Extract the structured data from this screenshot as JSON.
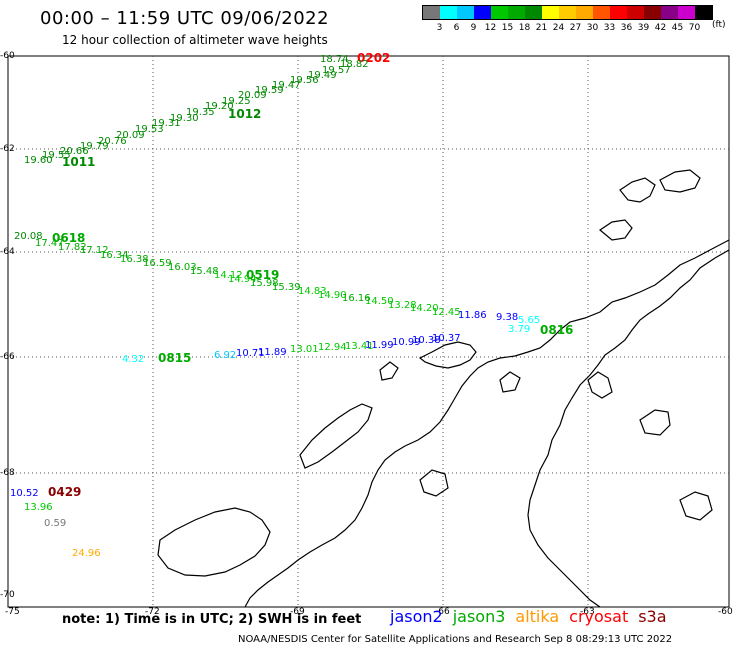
{
  "header": {
    "title": "00:00 – 11:59 UTC 09/06/2022",
    "subtitle": "12 hour collection of altimeter wave heights"
  },
  "legend": {
    "colors": [
      "#777777",
      "#00ffff",
      "#00c8ff",
      "#0000ff",
      "#00c800",
      "#00aa00",
      "#008800",
      "#ffff00",
      "#ffcc00",
      "#ffaa00",
      "#ff5500",
      "#ff0000",
      "#cc0000",
      "#880000",
      "#880088",
      "#cc00cc",
      "#000000"
    ],
    "labels": [
      "3",
      "6",
      "9",
      "12",
      "15",
      "18",
      "21",
      "24",
      "27",
      "30",
      "33",
      "36",
      "39",
      "42",
      "45",
      "70"
    ],
    "unit": "(ft)"
  },
  "axes": {
    "lat_labels": [
      "-60",
      "-62",
      "-64",
      "-66",
      "-68",
      "-70"
    ],
    "lon_labels": [
      "-75",
      "-72",
      "-69",
      "-66",
      "-63",
      "-60"
    ]
  },
  "passes": [
    {
      "id": "0202",
      "color": "#ff0000"
    },
    {
      "id": "1012",
      "color": "#008800"
    },
    {
      "id": "1011",
      "color": "#008800"
    },
    {
      "id": "0618",
      "color": "#00aa00"
    },
    {
      "id": "0519",
      "color": "#00aa00"
    },
    {
      "id": "0816",
      "color": "#00aa00"
    },
    {
      "id": "0815",
      "color": "#00aa00"
    },
    {
      "id": "0429",
      "color": "#880000"
    }
  ],
  "observations": {
    "track_0202": [
      "18.74",
      "18.82",
      "19.57",
      "19.49",
      "19.56",
      "19.47",
      "19.59",
      "20.09",
      "19.25",
      "19.20",
      "19.35",
      "19.30",
      "19.31",
      "19.53",
      "20.09",
      "20.76",
      "19.79",
      "20.66",
      "19.55",
      "19.60"
    ],
    "track_0618": [
      "20.08",
      "17.47",
      "17.82",
      "17.12",
      "16.34",
      "16.38",
      "16.59",
      "16.03",
      "15.48",
      "14.12",
      "14.94",
      "15.98",
      "15.39",
      "14.83",
      "14.90",
      "16.16",
      "14.50",
      "13.28",
      "14.20",
      "12.45",
      "11.86",
      "9.38",
      "5.65",
      "3.79"
    ],
    "track_0815": [
      "4.32",
      "6.92",
      "10.71",
      "11.89",
      "13.01",
      "12.94",
      "13.41",
      "11.99",
      "10.99",
      "10.38",
      "10.37"
    ],
    "misc": [
      "10.52",
      "13.96",
      "0.59",
      "24.96"
    ]
  },
  "footer": {
    "note": "note: 1) Time is in UTC; 2) SWH is in feet",
    "satellites": [
      {
        "name": "jason2",
        "color": "#0000ff"
      },
      {
        "name": "jason3",
        "color": "#00aa00"
      },
      {
        "name": "altika",
        "color": "#ff9900"
      },
      {
        "name": "cryosat",
        "color": "#ff0000"
      },
      {
        "name": "s3a",
        "color": "#880000"
      }
    ],
    "credit": "NOAA/NESDIS Center for Satellite Applications and Research   Sep  8 08:29:13 UTC 2022"
  }
}
